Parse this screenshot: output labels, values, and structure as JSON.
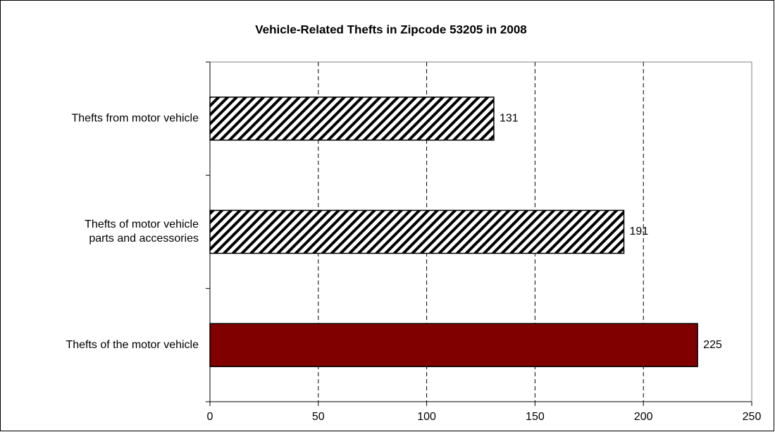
{
  "chart_data": {
    "type": "barh",
    "title": "Vehicle-Related Thefts in Zipcode 53205 in 2008",
    "categories": [
      "Thefts from motor vehicle",
      "Thefts of motor vehicle\nparts and accessories",
      "Thefts of the motor vehicle"
    ],
    "values": [
      131,
      191,
      225
    ],
    "fills": [
      {
        "pattern": "diagonal-hatch",
        "color": "#000000"
      },
      {
        "pattern": "diagonal-hatch",
        "color": "#000000"
      },
      {
        "color": "#800000"
      }
    ],
    "xlim": [
      0,
      250
    ],
    "xticks": [
      0,
      50,
      100,
      150,
      200,
      250
    ],
    "grid": true,
    "data_labels": true
  }
}
